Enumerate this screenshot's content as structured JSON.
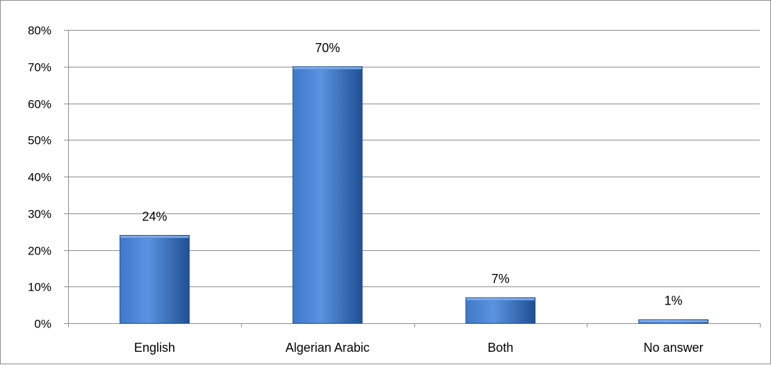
{
  "chart_data": {
    "type": "bar",
    "title": "",
    "xlabel": "",
    "ylabel": "",
    "categories": [
      "English",
      "Algerian Arabic",
      "Both",
      "No answer"
    ],
    "values": [
      24,
      70,
      7,
      1
    ],
    "value_labels": [
      "24%",
      "70%",
      "7%",
      "1%"
    ],
    "ylim": [
      0,
      80
    ],
    "y_ticks": [
      0,
      10,
      20,
      30,
      40,
      50,
      60,
      70,
      80
    ],
    "y_tick_labels": [
      "0%",
      "10%",
      "20%",
      "30%",
      "40%",
      "50%",
      "60%",
      "70%",
      "80%"
    ],
    "grid": true,
    "legend": "none",
    "colors": {
      "bar_light": "#5b93e0",
      "bar_mid": "#3f78c9",
      "bar_dark": "#1f4f93",
      "gridline": "#8c8c8c",
      "axis": "#8c8c8c"
    }
  }
}
